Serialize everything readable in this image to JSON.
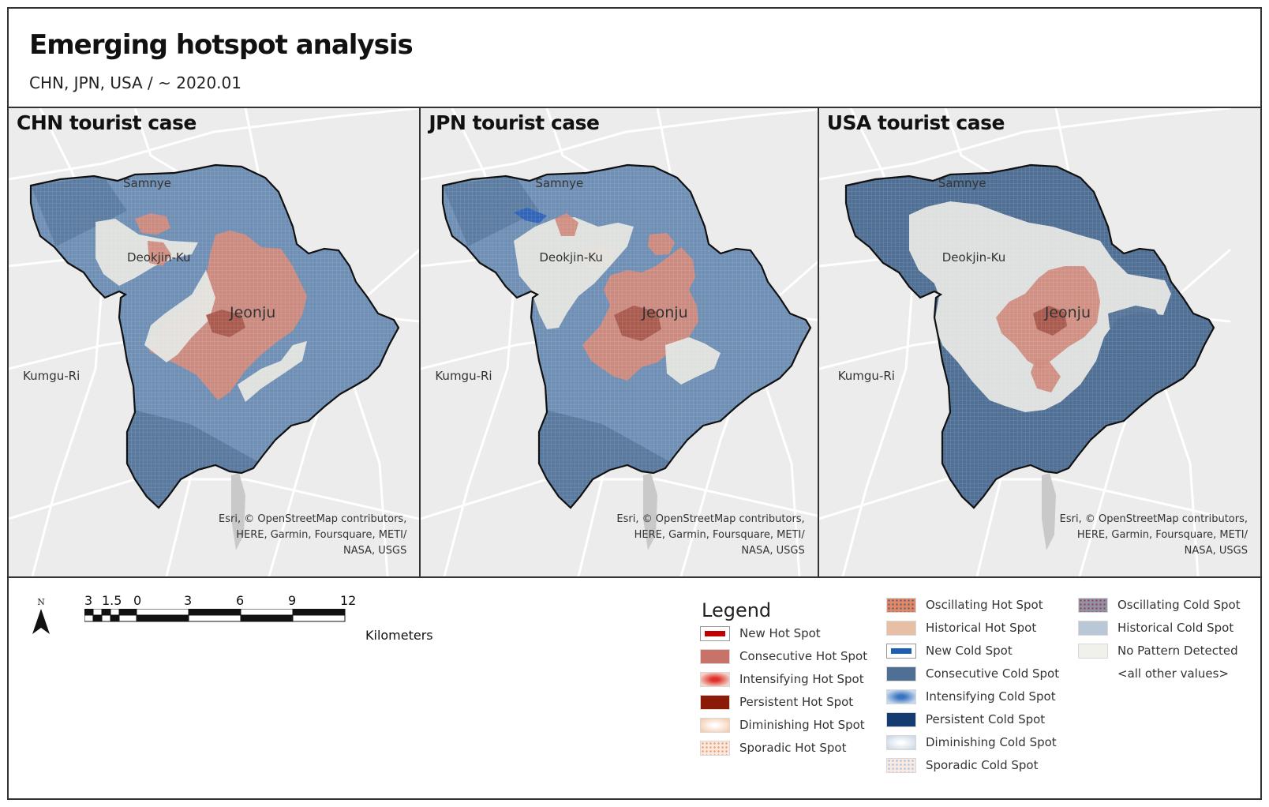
{
  "title": "Emerging hotspot analysis",
  "subtitle": "CHN, JPN, USA / ~ 2020.01",
  "panels": [
    {
      "title": "CHN tourist case"
    },
    {
      "title": "JPN tourist case"
    },
    {
      "title": "USA tourist case"
    }
  ],
  "places": {
    "samnye": "Samnye",
    "deokjin": "Deokjin-Ku",
    "jeonju": "Jeonju",
    "kumgu": "Kumgu-Ri"
  },
  "attribution": "Esri, © OpenStreetMap contributors, HERE, Garmin, Foursquare, METI/ NASA, USGS",
  "scale_bar": {
    "north": "N",
    "ticks": [
      "3",
      "1.5",
      "0",
      "3",
      "6",
      "9",
      "12"
    ],
    "unit": "Kilometers"
  },
  "legend": {
    "title": "Legend",
    "items": [
      {
        "label": "New Hot Spot",
        "color": "#c00000",
        "style": "outlined"
      },
      {
        "label": "Consecutive Hot Spot",
        "color": "#c8736a",
        "style": "solid"
      },
      {
        "label": "Intensifying Hot Spot",
        "color": "#e0302a",
        "style": "cross"
      },
      {
        "label": "Persistent Hot Spot",
        "color": "#8b1a08",
        "style": "solid"
      },
      {
        "label": "Diminishing Hot Spot",
        "color": "#f3c9aa",
        "style": "glow"
      },
      {
        "label": "Sporadic Hot Spot",
        "color": "#f2a37c",
        "style": "dots"
      },
      {
        "label": "Oscillating Hot Spot",
        "color": "#e28862",
        "style": "dots-dark"
      },
      {
        "label": "Historical Hot Spot",
        "color": "#e7bfa5",
        "style": "solid"
      },
      {
        "label": "New Cold Spot",
        "color": "#1f5fb0",
        "style": "outlined"
      },
      {
        "label": "Consecutive Cold Spot",
        "color": "#4f6f95",
        "style": "solid"
      },
      {
        "label": "Intensifying Cold Spot",
        "color": "#3a74c0",
        "style": "cross"
      },
      {
        "label": "Persistent Cold Spot",
        "color": "#143c70",
        "style": "solid"
      },
      {
        "label": "Diminishing Cold Spot",
        "color": "#c9d6e3",
        "style": "glow"
      },
      {
        "label": "Sporadic Cold Spot",
        "color": "#aec6e4",
        "style": "dots"
      },
      {
        "label": "Oscillating Cold Spot",
        "color": "#8e93a8",
        "style": "dots-red"
      },
      {
        "label": "Historical Cold Spot",
        "color": "#bac7d6",
        "style": "solid"
      },
      {
        "label": "No Pattern Detected",
        "color": "#f1f1ec",
        "style": "solid"
      },
      {
        "label": "<all other values>",
        "color": "",
        "style": "none"
      }
    ]
  },
  "colors": {
    "cold_base": "#6f8fb5",
    "cold_dark": "#506f94",
    "hot": "#d08b7e",
    "hot_dark": "#a8584c",
    "no_pattern": "#e5e6e2",
    "basemap": "#ececec",
    "roads": "#ffffff"
  }
}
